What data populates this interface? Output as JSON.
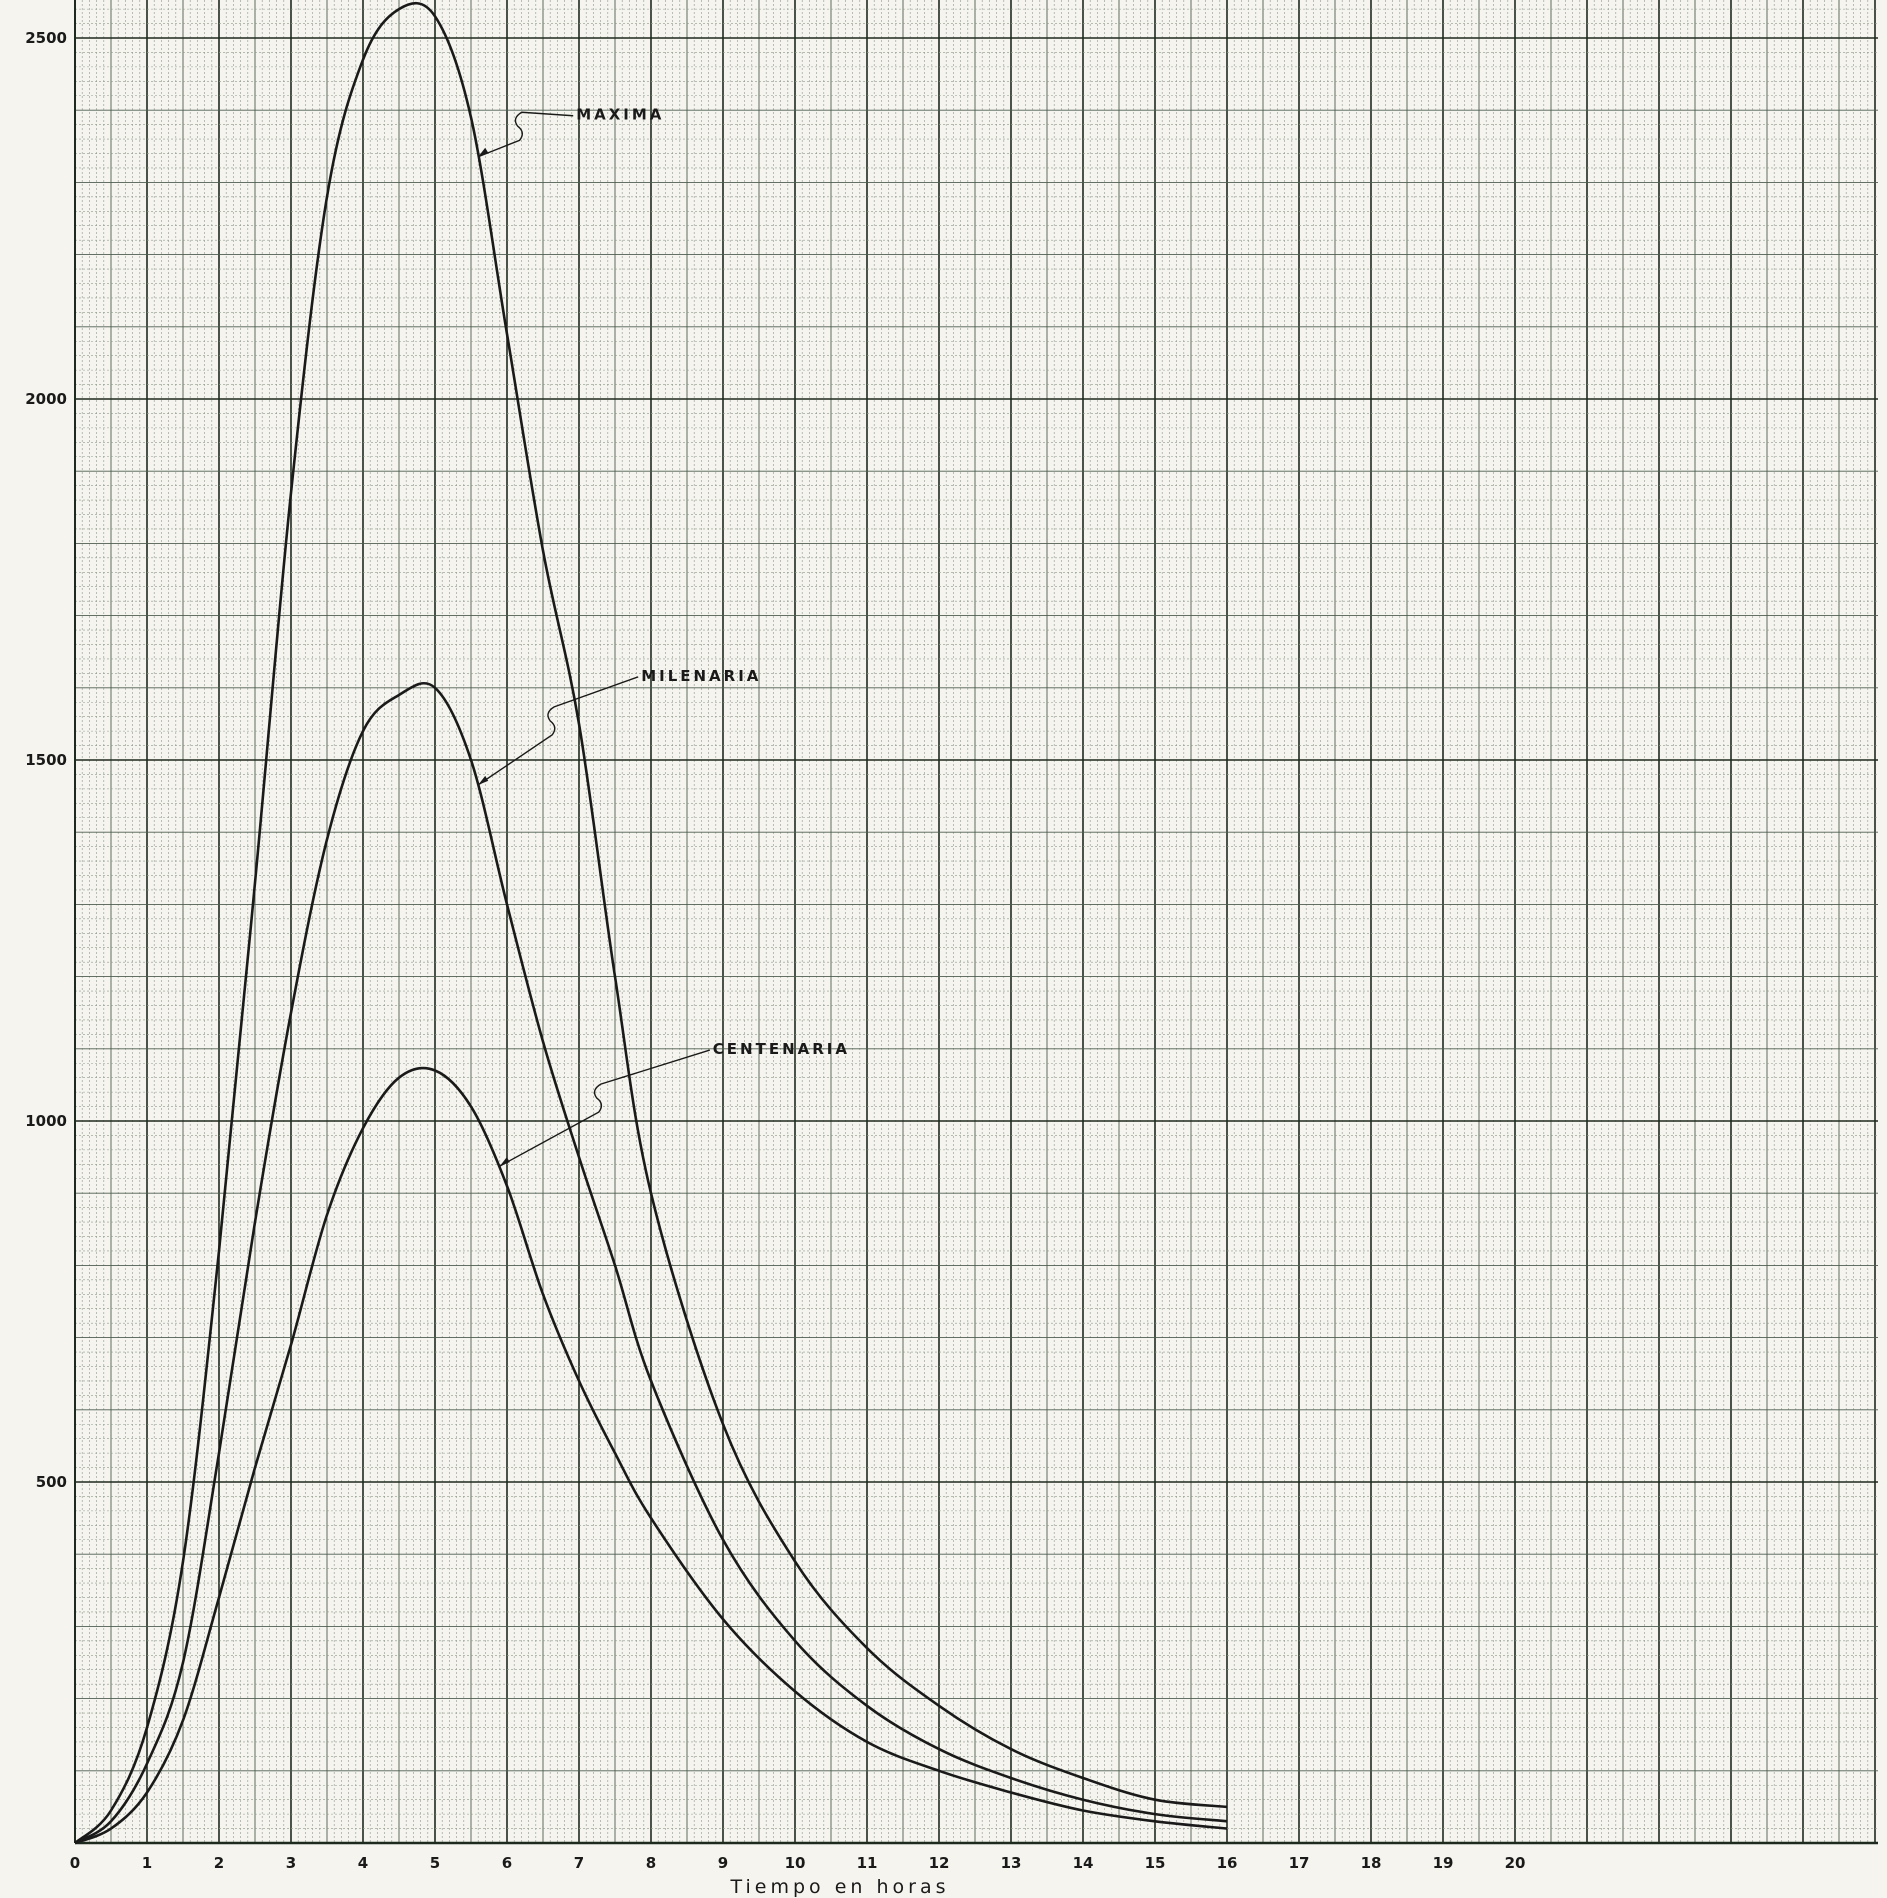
{
  "chart_data": {
    "type": "line",
    "xlabel": "Tiempo en horas",
    "ylabel": "",
    "xlim": [
      0,
      25
    ],
    "ylim": [
      0,
      2560
    ],
    "x_ticks": [
      "0",
      "1",
      "2",
      "3",
      "4",
      "5",
      "6",
      "7",
      "8",
      "9",
      "10",
      "11",
      "12",
      "13",
      "14",
      "15",
      "16",
      "17",
      "18",
      "19",
      "20"
    ],
    "y_ticks": [
      "500",
      "1000",
      "1500",
      "2000",
      "2500"
    ],
    "grid": true,
    "series": [
      {
        "name": "MAXIMA",
        "x": [
          0,
          0.5,
          1,
          1.5,
          2,
          2.5,
          3,
          3.5,
          4,
          4.5,
          5,
          5.5,
          6,
          6.5,
          7,
          7.5,
          8,
          9,
          10,
          11,
          12,
          13,
          14,
          15,
          16
        ],
        "y": [
          0,
          45,
          160,
          390,
          820,
          1330,
          1870,
          2280,
          2470,
          2540,
          2530,
          2390,
          2090,
          1790,
          1550,
          1200,
          900,
          580,
          390,
          270,
          190,
          130,
          90,
          60,
          50
        ]
      },
      {
        "name": "MILENARIA",
        "x": [
          0,
          0.5,
          1,
          1.5,
          2,
          2.5,
          3,
          3.5,
          4,
          4.5,
          5,
          5.5,
          6,
          6.5,
          7,
          7.5,
          8,
          9,
          10,
          11,
          12,
          13,
          14,
          15,
          16
        ],
        "y": [
          0,
          30,
          110,
          250,
          540,
          860,
          1150,
          1390,
          1540,
          1590,
          1600,
          1500,
          1300,
          1110,
          950,
          800,
          640,
          420,
          280,
          190,
          130,
          90,
          60,
          40,
          30
        ]
      },
      {
        "name": "CENTENARIA",
        "x": [
          0,
          0.5,
          1,
          1.5,
          2,
          2.5,
          3,
          3.5,
          4,
          4.5,
          5,
          5.5,
          6,
          6.5,
          7,
          7.5,
          8,
          9,
          10,
          11,
          12,
          13,
          14,
          15,
          16
        ],
        "y": [
          0,
          20,
          70,
          170,
          340,
          520,
          690,
          870,
          990,
          1060,
          1070,
          1020,
          910,
          760,
          640,
          540,
          450,
          310,
          210,
          140,
          100,
          70,
          45,
          30,
          20
        ]
      }
    ],
    "annotations": [
      {
        "text": "MAXIMA",
        "series": "MAXIMA",
        "at_x": 5.6
      },
      {
        "text": "MILENARIA",
        "series": "MILENARIA",
        "at_x": 5.6
      },
      {
        "text": "CENTENARIA",
        "series": "CENTENARIA",
        "at_x": 5.9
      }
    ],
    "colors": {
      "paper": "#f5f4ee",
      "grid_fine": "#8d9a8a",
      "grid_mid": "#4f5d4f",
      "grid_major": "#1f2a1f",
      "curve": "#1a1a1a"
    }
  }
}
